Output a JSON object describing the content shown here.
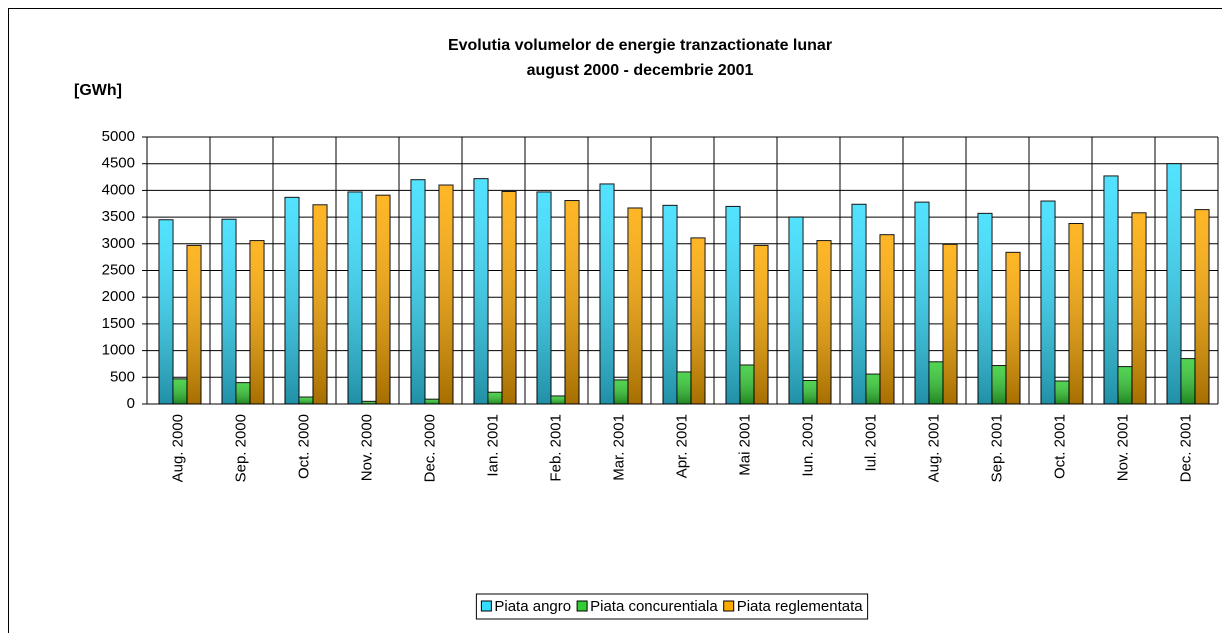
{
  "chart_data": {
    "type": "bar",
    "title": "Evolutia volumelor de energie tranzactionate lunar",
    "subtitle": "august 2000 - decembrie 2001",
    "y_label": "[GWh]",
    "categories": [
      "Aug. 2000",
      "Sep. 2000",
      "Oct. 2000",
      "Nov. 2000",
      "Dec. 2000",
      "Ian. 2001",
      "Feb. 2001",
      "Mar. 2001",
      "Apr. 2001",
      "Mai 2001",
      "Iun. 2001",
      "Iul. 2001",
      "Aug. 2001",
      "Sep. 2001",
      "Oct. 2001",
      "Nov. 2001",
      "Dec. 2001"
    ],
    "series": [
      {
        "name": "Piata angro",
        "color": "#33ddff",
        "values": [
          3450,
          3460,
          3870,
          3970,
          4200,
          4220,
          3970,
          4120,
          3720,
          3700,
          3500,
          3740,
          3780,
          3570,
          3800,
          4270,
          4500
        ]
      },
      {
        "name": "Piata concurentiala",
        "color": "#33cc33",
        "values": [
          470,
          400,
          130,
          50,
          90,
          220,
          150,
          450,
          600,
          730,
          440,
          560,
          790,
          720,
          430,
          700,
          850
        ]
      },
      {
        "name": "Piata reglementata",
        "color": "#ffaa00",
        "values": [
          2970,
          3060,
          3730,
          3910,
          4100,
          3980,
          3810,
          3670,
          3110,
          2970,
          3060,
          3170,
          2990,
          2840,
          3380,
          3580,
          3640
        ]
      }
    ],
    "ylim": [
      0,
      5000
    ],
    "yticks": [
      0,
      500,
      1000,
      1500,
      2000,
      2500,
      3000,
      3500,
      4000,
      4500,
      5000
    ],
    "grid": true,
    "legend": "bottom"
  }
}
